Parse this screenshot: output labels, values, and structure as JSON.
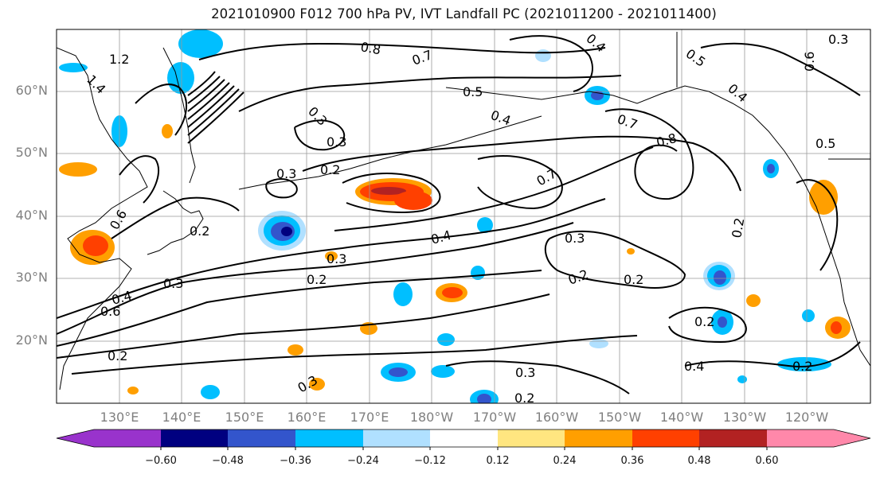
{
  "title": "2021010900 F012 700 hPa PV, IVT Landfall PC (2021011200 - 2021011400)",
  "lat_labels": [
    "60°N",
    "50°N",
    "40°N",
    "30°N",
    "20°N"
  ],
  "lon_labels": [
    "130°E",
    "140°E",
    "150°E",
    "160°E",
    "170°E",
    "180°W",
    "170°W",
    "160°W",
    "150°W",
    "140°W",
    "130°W",
    "120°W"
  ],
  "contour_labels": [
    "0.8",
    "0.7",
    "0.4",
    "0.3",
    "1.2",
    "1.4",
    "0.5",
    "0.3",
    "0.4",
    "0.3",
    "0.2",
    "0.3",
    "0.8",
    "0.7",
    "0.7",
    "0.5",
    "0.6",
    "0.4",
    "0.5",
    "0.2",
    "0.6",
    "0.2",
    "0.4",
    "0.3",
    "0.2",
    "0.3",
    "0.2",
    "0.2",
    "0.3",
    "0.4",
    "0.6",
    "0.2",
    "0.2",
    "0.3",
    "0.2",
    "0.4",
    "0.2",
    "0.3"
  ],
  "colorbar": {
    "ticks": [
      "−0.60",
      "−0.48",
      "−0.36",
      "−0.24",
      "−0.12",
      "0.12",
      "0.24",
      "0.36",
      "0.48",
      "0.60"
    ],
    "colors": [
      "#9933cc",
      "#000080",
      "#3355cc",
      "#00bfff",
      "#b0e0ff",
      "#ffffff",
      "#ffe680",
      "#ff9f00",
      "#ff4000",
      "#b22222",
      "#ff88aa"
    ]
  },
  "colors": {
    "contour": "#000000",
    "coastline": "#000000",
    "gridline": "#999999",
    "axis_label": "#7f7f7f"
  }
}
